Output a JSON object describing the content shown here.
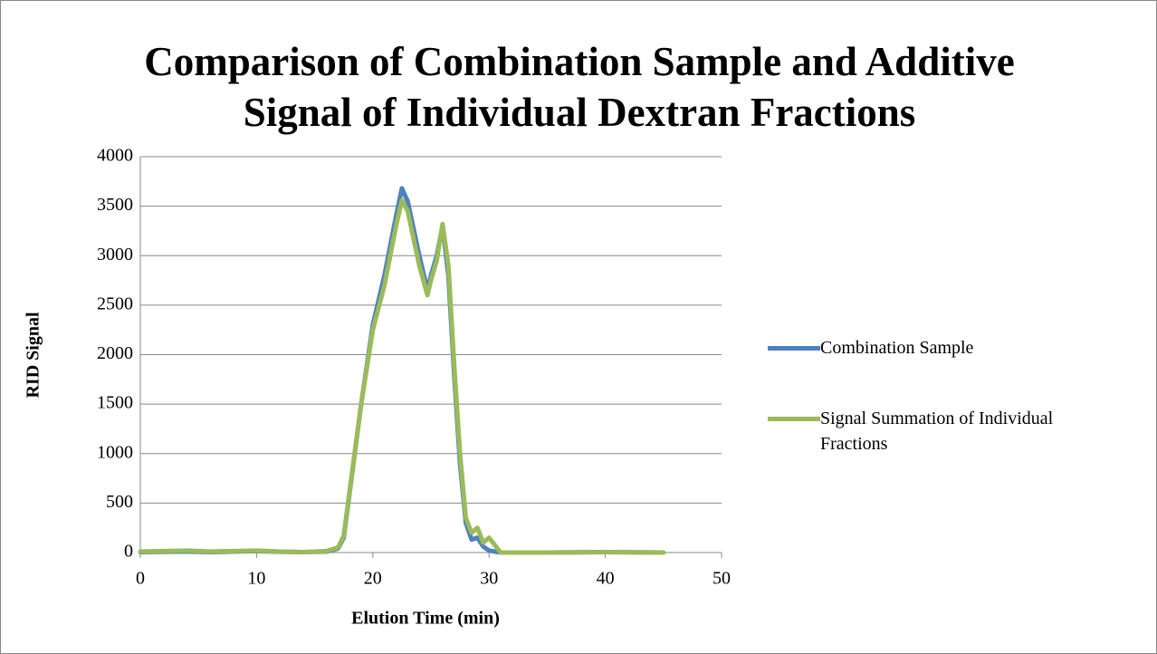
{
  "chart_data": {
    "type": "line",
    "title": "Comparison of Combination Sample and Additive Signal of Individual Dextran Fractions",
    "xlabel": "Elution Time (min)",
    "ylabel": "RID Signal",
    "x": [
      0,
      2,
      4,
      6,
      8,
      10,
      12,
      14,
      16,
      17,
      17.5,
      18,
      19,
      20,
      21,
      22,
      22.5,
      23,
      24,
      24.7,
      25,
      25.5,
      26,
      26.5,
      27,
      27.5,
      28,
      28.5,
      29,
      29.5,
      30,
      31,
      35,
      40,
      45
    ],
    "series": [
      {
        "name": "Combination Sample",
        "color": "#4f81bd",
        "values": [
          5,
          8,
          10,
          5,
          10,
          15,
          8,
          5,
          10,
          40,
          150,
          600,
          1500,
          2300,
          2800,
          3400,
          3680,
          3550,
          3000,
          2650,
          2800,
          3000,
          3300,
          2800,
          1800,
          900,
          300,
          130,
          150,
          60,
          20,
          0,
          0,
          5,
          0
        ]
      },
      {
        "name": "Signal Summation of Individual Fractions",
        "color": "#9bbb59",
        "values": [
          10,
          15,
          20,
          10,
          15,
          20,
          10,
          5,
          15,
          50,
          170,
          620,
          1500,
          2250,
          2700,
          3300,
          3560,
          3450,
          2900,
          2600,
          2750,
          2950,
          3320,
          2900,
          1900,
          1000,
          350,
          200,
          250,
          100,
          150,
          0,
          0,
          5,
          0
        ]
      }
    ],
    "xlim": [
      0,
      50
    ],
    "xticks": [
      0,
      10,
      20,
      30,
      40,
      50
    ],
    "ylim": [
      0,
      4000
    ],
    "yticks": [
      0,
      500,
      1000,
      1500,
      2000,
      2500,
      3000,
      3500,
      4000
    ],
    "grid": true,
    "legend": "right"
  }
}
